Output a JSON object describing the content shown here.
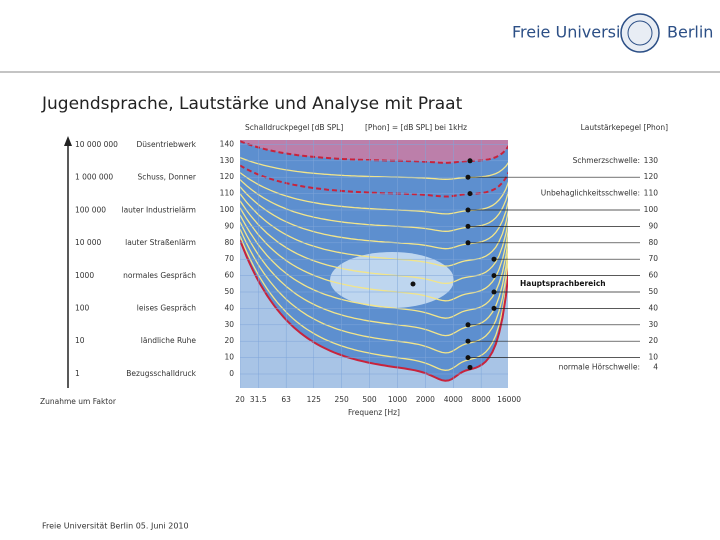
{
  "header": {
    "logo_left": "Freie Universität",
    "logo_right": "Berlin"
  },
  "title": "Jugendsprache, Lautstärke und Analyse mit Praat",
  "figure": {
    "y_axis_label": "Schalldruckpegel [dB SPL]",
    "phon_label": "[Phon] = [dB SPL] bei 1kHz",
    "right_axis_label": "Lautstärkepegel [Phon]",
    "x_axis_label": "Frequenz [Hz]",
    "y_ticks": [
      0,
      10,
      20,
      30,
      40,
      50,
      60,
      70,
      80,
      90,
      100,
      110,
      120,
      130,
      140
    ],
    "x_ticks": [
      20,
      31.5,
      63,
      125,
      250,
      500,
      1000,
      2000,
      4000,
      8000,
      16000
    ],
    "factor_axis_label": "Zunahme um Faktor",
    "factors": [
      {
        "factor": "10 000 000",
        "source": "Düsentriebwerk"
      },
      {
        "factor": "1 000 000",
        "source": "Schuss, Donner"
      },
      {
        "factor": "100 000",
        "source": "lauter Industrielärm"
      },
      {
        "factor": "10 000",
        "source": "lauter Straßenlärm"
      },
      {
        "factor": "1000",
        "source": "normales Gespräch"
      },
      {
        "factor": "100",
        "source": "leises Gespräch"
      },
      {
        "factor": "10",
        "source": "ländliche Ruhe"
      },
      {
        "factor": "1",
        "source": "Bezugsschalldruck"
      }
    ],
    "thresholds": [
      {
        "label": "Schmerzschwelle:",
        "value": 130
      },
      {
        "label": "Unbehaglichkeitsschwelle:",
        "value": 110
      },
      {
        "label": "normale Hörschwelle:",
        "value": 4
      }
    ],
    "phon_levels": [
      120,
      100,
      90,
      80,
      70,
      60,
      50,
      40,
      30,
      20,
      10
    ],
    "speech_area": "Hauptsprachbereich"
  },
  "footer": "Freie Universität Berlin 05. Juni 2010"
}
